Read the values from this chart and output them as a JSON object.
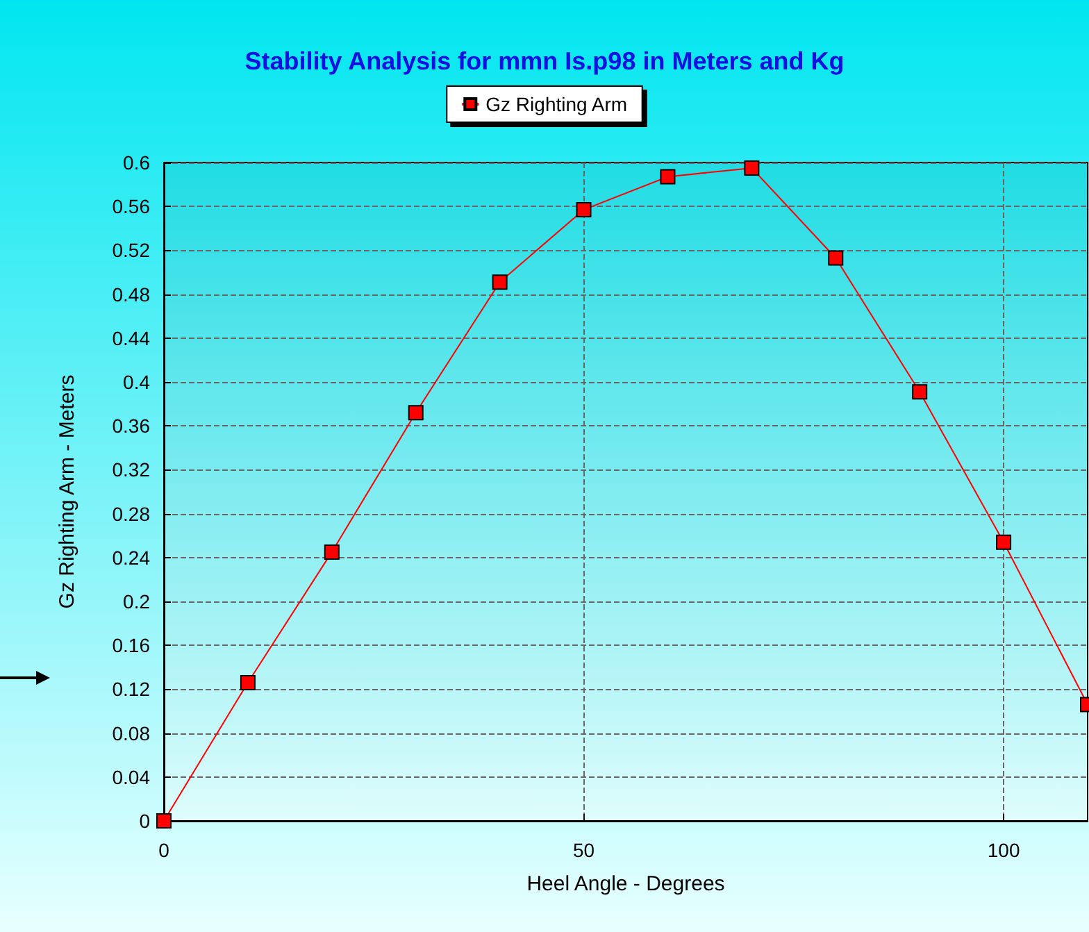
{
  "chart_data": {
    "type": "line",
    "title": "Stability Analysis for mmn Is.p98 in Meters and Kg",
    "xlabel": "Heel Angle - Degrees",
    "ylabel": "Gz Righting Arm - Meters",
    "x": [
      0,
      10,
      20,
      30,
      40,
      50,
      60,
      70,
      80,
      90,
      100,
      110
    ],
    "series": [
      {
        "name": "Gz Righting Arm",
        "color": "#ff0000",
        "values": [
          0,
          0.126,
          0.245,
          0.372,
          0.491,
          0.557,
          0.587,
          0.595,
          0.513,
          0.391,
          0.254,
          0.106
        ]
      }
    ],
    "xlim": [
      0,
      110
    ],
    "xticks": [
      0,
      50,
      100
    ],
    "ylim": [
      0,
      0.6
    ],
    "yticks": [
      0,
      0.04,
      0.08,
      0.12,
      0.16,
      0.2,
      0.24,
      0.28,
      0.32,
      0.36,
      0.4,
      0.44,
      0.48,
      0.52,
      0.56,
      0.6
    ],
    "grid": true,
    "legend": "top",
    "marker": "square",
    "line_style": "solid"
  }
}
